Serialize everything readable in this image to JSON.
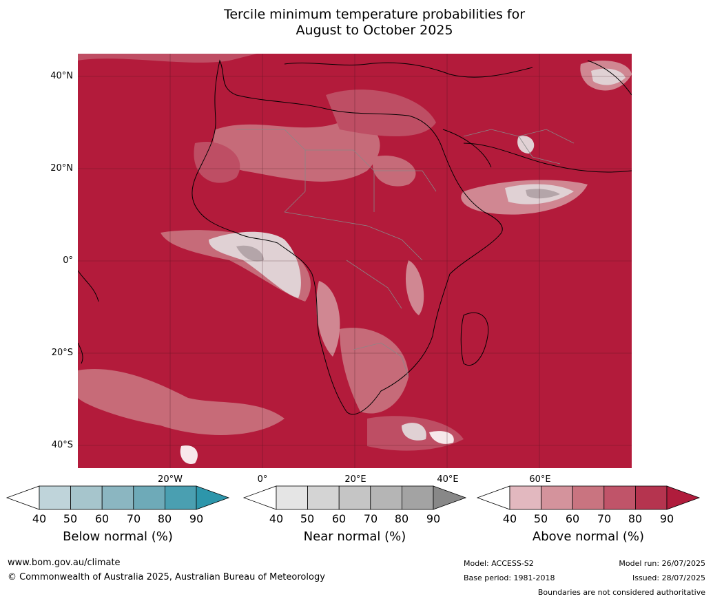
{
  "title": {
    "line1": "Tercile minimum temperature probabilities for",
    "line2": "August to October 2025"
  },
  "map": {
    "base_color": "#b31b3b",
    "lat_labels": [
      "40°N",
      "20°N",
      "0°",
      "20°S",
      "40°S"
    ],
    "lon_labels": [
      "20°W",
      "0°",
      "20°E",
      "40°E",
      "60°E"
    ]
  },
  "colorbars": [
    {
      "label": "Below normal (%)",
      "ticks": [
        "40",
        "50",
        "60",
        "70",
        "80",
        "90"
      ],
      "colors": [
        "#ffffff",
        "#bfd4da",
        "#a6c5cc",
        "#8bb6c1",
        "#6eaab8",
        "#4a9fb1",
        "#2d96ab"
      ]
    },
    {
      "label": "Near normal (%)",
      "ticks": [
        "40",
        "50",
        "60",
        "70",
        "80",
        "90"
      ],
      "colors": [
        "#ffffff",
        "#e5e5e5",
        "#d4d4d4",
        "#c5c5c5",
        "#b5b5b5",
        "#a3a3a3",
        "#888888"
      ]
    },
    {
      "label": "Above normal (%)",
      "ticks": [
        "40",
        "50",
        "60",
        "70",
        "80",
        "90"
      ],
      "colors": [
        "#ffffff",
        "#e2b8bf",
        "#d4939c",
        "#c97480",
        "#c05469",
        "#b5344f",
        "#b01c3c"
      ]
    }
  ],
  "footer": {
    "website": "www.bom.gov.au/climate",
    "copyright": "© Commonwealth of Australia 2025, Australian Bureau of Meteorology",
    "model": "Model: ACCESS-S2",
    "base_period": "Base period: 1981-2018",
    "model_run": "Model run: 26/07/2025",
    "issued": "Issued: 28/07/2025",
    "disclaimer": "Boundaries are not considered authoritative"
  }
}
